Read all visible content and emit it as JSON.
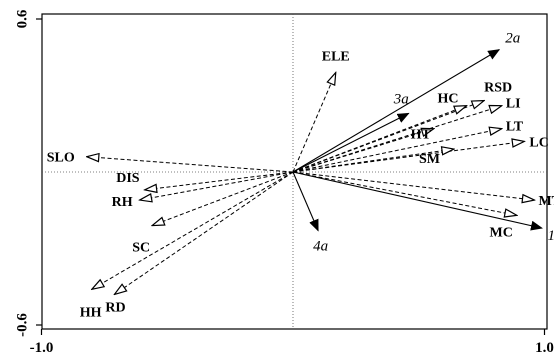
{
  "chart_data": {
    "type": "biplot",
    "xlim": [
      -1.0,
      1.0
    ],
    "ylim": [
      -0.6,
      0.6
    ],
    "x_ticks": [
      {
        "value": -1.0,
        "label": "-1.0"
      },
      {
        "value": 1.0,
        "label": "1.0"
      }
    ],
    "y_ticks": [
      {
        "value": 0.6,
        "label": "0.6"
      },
      {
        "value": -0.6,
        "label": "-0.6"
      }
    ],
    "reference_lines": {
      "x": 0,
      "y": 0
    },
    "environmental_vectors": [
      {
        "name": "ELE",
        "x": 0.17,
        "y": 0.39
      },
      {
        "name": "RSD",
        "x": 0.76,
        "y": 0.28
      },
      {
        "name": "HC",
        "x": 0.69,
        "y": 0.26
      },
      {
        "name": "LI",
        "x": 0.83,
        "y": 0.26
      },
      {
        "name": "HT",
        "x": 0.56,
        "y": 0.17
      },
      {
        "name": "LT",
        "x": 0.83,
        "y": 0.17
      },
      {
        "name": "LC",
        "x": 0.92,
        "y": 0.12
      },
      {
        "name": "SM",
        "x": 0.64,
        "y": 0.09
      },
      {
        "name": "MT",
        "x": 0.96,
        "y": -0.11
      },
      {
        "name": "MC",
        "x": 0.89,
        "y": -0.17
      },
      {
        "name": "SLO",
        "x": -0.82,
        "y": 0.06
      },
      {
        "name": "DIS",
        "x": -0.59,
        "y": -0.07
      },
      {
        "name": "RH",
        "x": -0.61,
        "y": -0.11
      },
      {
        "name": "SC",
        "x": -0.56,
        "y": -0.21
      },
      {
        "name": "HH",
        "x": -0.8,
        "y": -0.46
      },
      {
        "name": "RD",
        "x": -0.71,
        "y": -0.48
      }
    ],
    "species_vectors": [
      {
        "name": "1a",
        "x": 0.99,
        "y": -0.22
      },
      {
        "name": "2a",
        "x": 0.82,
        "y": 0.48
      },
      {
        "name": "3a",
        "x": 0.46,
        "y": 0.23
      },
      {
        "name": "4a",
        "x": 0.1,
        "y": -0.23
      }
    ]
  }
}
